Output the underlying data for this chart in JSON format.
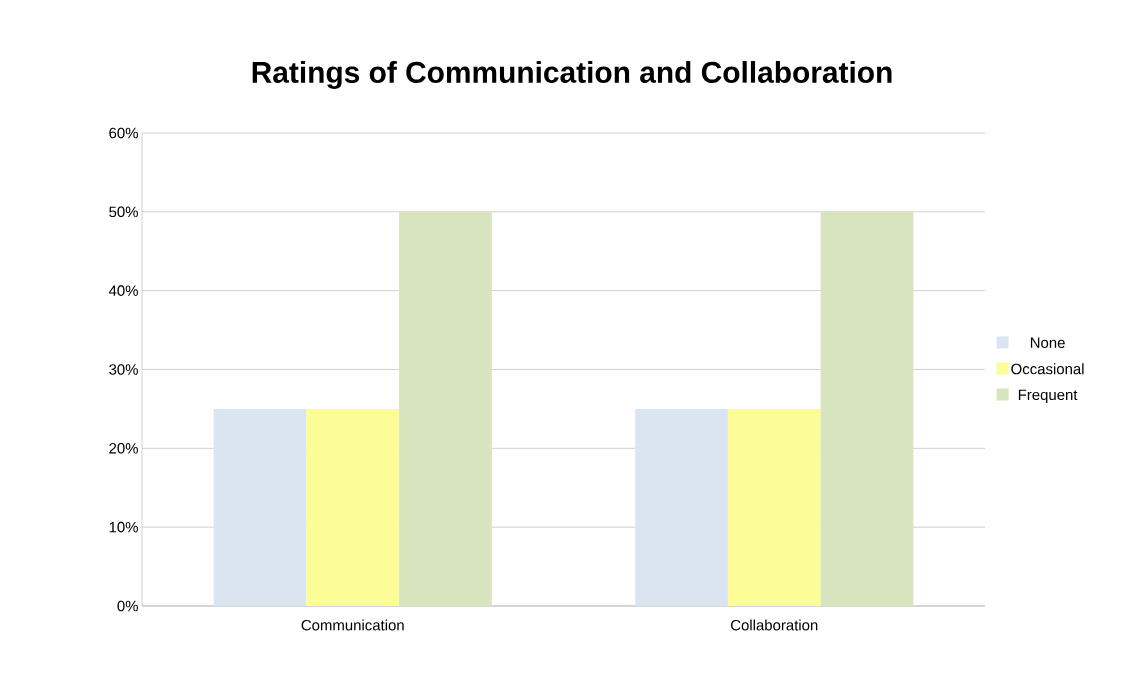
{
  "chart_data": {
    "type": "bar",
    "title": "Ratings of Communication and Collaboration",
    "categories": [
      "Communication",
      "Collaboration"
    ],
    "series": [
      {
        "name": "None",
        "color": "#dbe5f1",
        "values": [
          25,
          25
        ]
      },
      {
        "name": "Occasional",
        "color": "#fdfd98",
        "values": [
          25,
          25
        ]
      },
      {
        "name": "Frequent",
        "color": "#d7e4bd",
        "values": [
          50,
          50
        ]
      }
    ],
    "ylim": [
      0,
      60
    ],
    "yticks": [
      {
        "value": 0,
        "label": "0%"
      },
      {
        "value": 10,
        "label": "10%"
      },
      {
        "value": 20,
        "label": "20%"
      },
      {
        "value": 30,
        "label": "30%"
      },
      {
        "value": 40,
        "label": "40%"
      },
      {
        "value": 50,
        "label": "50%"
      },
      {
        "value": 60,
        "label": "60%"
      }
    ],
    "grid": "y",
    "legend": "right"
  }
}
